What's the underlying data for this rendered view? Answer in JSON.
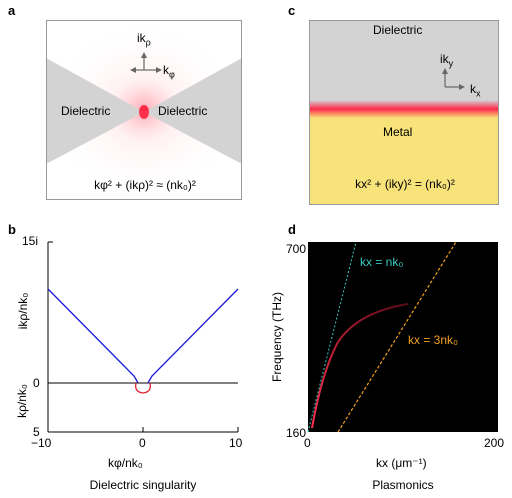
{
  "panels": {
    "a": {
      "label": "a",
      "dielectric_left": "Dielectric",
      "dielectric_right": "Dielectric",
      "axis_up": "ik",
      "axis_up_sub": "ρ",
      "axis_right": "k",
      "axis_right_sub": "φ",
      "equation": "kφ² + (ikρ)² ≈ (nk₀)²"
    },
    "b": {
      "label": "b",
      "ylabel_top": "ikρ/nk₀",
      "ylabel_bottom": "kρ/nk₀",
      "xlabel": "kφ/nk₀",
      "caption": "Dielectric singularity",
      "yticks": [
        "15i",
        "0",
        "5"
      ],
      "xticks": [
        "−10",
        "0",
        "10"
      ]
    },
    "c": {
      "label": "c",
      "top_region": "Dielectric",
      "bottom_region": "Metal",
      "axis_up": "ik",
      "axis_up_sub": "y",
      "axis_right": "k",
      "axis_right_sub": "x",
      "equation": "kx² + (iky)² = (nk₀)²"
    },
    "d": {
      "label": "d",
      "ylabel": "Frequency (THz)",
      "xlabel": "kx (μm⁻¹)",
      "caption": "Plasmonics",
      "yticks": [
        "700",
        "160"
      ],
      "xticks": [
        "0",
        "200"
      ],
      "line1_label": "kx = nk₀",
      "line2_label": "kx = 3nk₀"
    }
  },
  "colors": {
    "gray_region": "#d3d3d3",
    "metal": "#f7e37a",
    "plasmon_glow": "#ff2a4a",
    "blue_curve": "#1a1ad6",
    "red_curve": "#e0202a",
    "cyan_line": "#39c9c0",
    "orange_line": "#f0a020",
    "dark_bg": "#000000"
  },
  "chart_data": [
    {
      "type": "line",
      "panel": "b",
      "xlim": [
        -10,
        10
      ],
      "ylim_imag": [
        0,
        15
      ],
      "ylim_real": [
        0,
        5
      ],
      "series": [
        {
          "values_x": [
            -10,
            -8,
            -6,
            -4,
            -2,
            -1,
            -0.8,
            0.8,
            1,
            2,
            4,
            6,
            8,
            10
          ],
          "values_y_imag": [
            10,
            8,
            6,
            4,
            2,
            0.6,
            0,
            0,
            0.6,
            2,
            4,
            6,
            8,
            10
          ]
        },
        {
          "values_x": [
            -1,
            -0.7,
            0,
            0.7,
            1
          ],
          "values_y_real": [
            0,
            0.6,
            1,
            0.6,
            0
          ]
        }
      ]
    },
    {
      "type": "line",
      "panel": "d",
      "xlim": [
        0,
        200
      ],
      "ylim": [
        160,
        700
      ],
      "series": [
        {
          "name": "kx = nk₀",
          "x": [
            0,
            50
          ],
          "y": [
            160,
            700
          ]
        },
        {
          "name": "kx = 3nk₀",
          "x": [
            28,
            155
          ],
          "y": [
            160,
            700
          ]
        },
        {
          "x": [
            5,
            20,
            40,
            60,
            80,
            100
          ],
          "y": [
            170,
            330,
            440,
            495,
            520,
            530
          ]
        }
      ]
    }
  ]
}
